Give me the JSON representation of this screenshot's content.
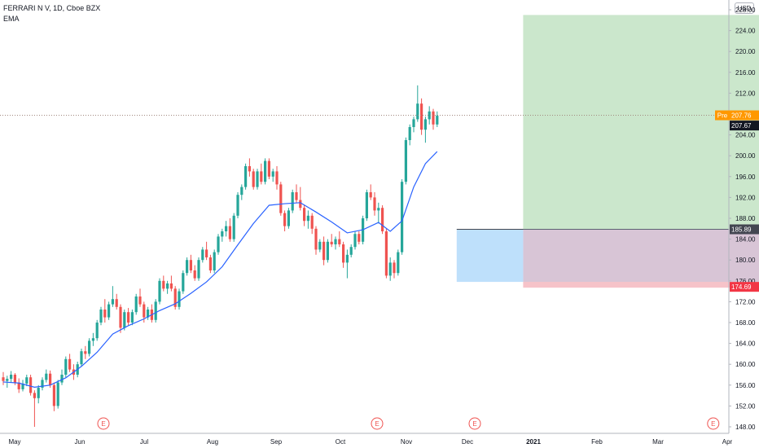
{
  "header": {
    "symbol_line": "FERRARI N V, 1D, Cboe BZX",
    "indicator": "EMA",
    "currency": "USD"
  },
  "colors": {
    "up": "#26a69a",
    "down": "#ef5350",
    "ema": "#2962ff",
    "profit_zone": "#c8e6c9",
    "loss_zone": "#f5c0c6",
    "entry_zone": "#bbdefb",
    "pre_label": "#ff9800",
    "current_label": "#131722",
    "entry_label": "#434651",
    "stop_label": "#f23645"
  },
  "chart_data": {
    "type": "candlestick",
    "y_range": [
      147,
      227
    ],
    "y_ticks": [
      "148.00",
      "152.00",
      "156.00",
      "160.00",
      "164.00",
      "168.00",
      "172.00",
      "176.00",
      "180.00",
      "184.00",
      "188.00",
      "192.00",
      "196.00",
      "200.00",
      "204.00",
      "208.00",
      "212.00",
      "216.00",
      "220.00",
      "224.00",
      "228.00"
    ],
    "x_ticks": [
      "May",
      "Jun",
      "Jul",
      "Aug",
      "Sep",
      "Oct",
      "Nov",
      "Dec",
      "2021",
      "Feb",
      "Mar",
      "Apr"
    ],
    "bars": [
      [
        0,
        157.5,
        158.5,
        156.0,
        156.8
      ],
      [
        1,
        156.8,
        157.8,
        155.5,
        157.2
      ],
      [
        2,
        157.2,
        158.7,
        156.5,
        158.0
      ],
      [
        3,
        158.0,
        158.3,
        156.0,
        156.5
      ],
      [
        4,
        156.5,
        157.3,
        154.5,
        155.2
      ],
      [
        5,
        155.2,
        157.0,
        154.8,
        156.3
      ],
      [
        6,
        156.3,
        158.0,
        155.8,
        157.5
      ],
      [
        7,
        157.5,
        158.0,
        154.0,
        154.5
      ],
      [
        8,
        154.5,
        155.0,
        148.0,
        153.5
      ],
      [
        9,
        153.5,
        156.0,
        152.5,
        155.5
      ],
      [
        10,
        155.5,
        157.5,
        155.0,
        157.0
      ],
      [
        11,
        157.0,
        159.0,
        156.5,
        158.2
      ],
      [
        12,
        158.2,
        158.8,
        155.5,
        156.0
      ],
      [
        13,
        156.0,
        156.5,
        151.0,
        152.0
      ],
      [
        14,
        152.0,
        157.0,
        151.5,
        156.5
      ],
      [
        15,
        156.5,
        159.0,
        156.0,
        158.0
      ],
      [
        16,
        158.0,
        161.5,
        157.5,
        161.0
      ],
      [
        17,
        161.0,
        162.0,
        158.5,
        159.0
      ],
      [
        18,
        159.0,
        160.0,
        157.0,
        158.0
      ],
      [
        19,
        158.0,
        160.5,
        157.5,
        160.0
      ],
      [
        20,
        160.0,
        163.0,
        159.5,
        162.5
      ],
      [
        21,
        162.5,
        163.5,
        161.0,
        162.0
      ],
      [
        22,
        162.0,
        165.0,
        161.5,
        164.5
      ],
      [
        23,
        164.5,
        166.0,
        163.5,
        165.0
      ],
      [
        24,
        165.0,
        168.5,
        164.5,
        168.0
      ],
      [
        25,
        168.0,
        171.0,
        167.5,
        170.5
      ],
      [
        26,
        170.5,
        172.5,
        168.0,
        169.0
      ],
      [
        27,
        169.0,
        172.0,
        168.5,
        171.5
      ],
      [
        28,
        171.5,
        175.0,
        171.0,
        172.5
      ],
      [
        29,
        172.5,
        173.5,
        170.5,
        171.0
      ],
      [
        30,
        171.0,
        171.5,
        166.0,
        167.0
      ],
      [
        31,
        167.0,
        170.5,
        166.5,
        170.0
      ],
      [
        32,
        170.0,
        170.8,
        167.5,
        168.0
      ],
      [
        33,
        168.0,
        170.5,
        167.5,
        170.0
      ],
      [
        34,
        170.0,
        173.5,
        169.5,
        173.0
      ],
      [
        35,
        173.0,
        174.5,
        171.0,
        171.5
      ],
      [
        36,
        171.5,
        172.0,
        168.0,
        169.0
      ],
      [
        37,
        169.0,
        171.0,
        168.5,
        170.5
      ],
      [
        38,
        170.5,
        171.5,
        168.0,
        168.5
      ],
      [
        39,
        168.5,
        172.5,
        168.0,
        172.0
      ],
      [
        40,
        172.0,
        176.5,
        171.5,
        176.0
      ],
      [
        41,
        176.0,
        177.0,
        174.0,
        174.5
      ],
      [
        42,
        174.5,
        176.0,
        173.5,
        175.5
      ],
      [
        43,
        175.5,
        177.0,
        174.0,
        174.5
      ],
      [
        44,
        174.5,
        175.0,
        170.5,
        171.0
      ],
      [
        45,
        171.0,
        174.5,
        170.5,
        174.0
      ],
      [
        46,
        174.0,
        178.0,
        173.5,
        177.5
      ],
      [
        47,
        177.5,
        180.5,
        177.0,
        180.0
      ],
      [
        48,
        180.0,
        181.0,
        177.5,
        178.0
      ],
      [
        49,
        178.0,
        179.0,
        176.0,
        176.5
      ],
      [
        50,
        176.5,
        180.5,
        176.0,
        180.0
      ],
      [
        51,
        180.0,
        182.5,
        179.5,
        182.0
      ],
      [
        52,
        182.0,
        183.5,
        180.0,
        180.5
      ],
      [
        53,
        180.5,
        181.0,
        177.5,
        178.0
      ],
      [
        54,
        178.0,
        182.0,
        177.5,
        181.5
      ],
      [
        55,
        181.5,
        185.0,
        181.0,
        184.5
      ],
      [
        56,
        184.5,
        186.0,
        183.5,
        185.5
      ],
      [
        57,
        185.5,
        187.5,
        184.5,
        186.5
      ],
      [
        58,
        186.5,
        188.0,
        183.5,
        184.0
      ],
      [
        59,
        184.0,
        189.0,
        183.5,
        188.5
      ],
      [
        60,
        188.5,
        193.0,
        188.0,
        192.5
      ],
      [
        61,
        192.5,
        194.5,
        191.5,
        194.0
      ],
      [
        62,
        194.0,
        198.5,
        193.5,
        198.0
      ],
      [
        63,
        198.0,
        199.5,
        196.0,
        197.0
      ],
      [
        64,
        197.0,
        197.5,
        193.5,
        194.0
      ],
      [
        65,
        194.0,
        197.5,
        193.5,
        197.0
      ],
      [
        66,
        197.0,
        198.5,
        194.5,
        195.0
      ],
      [
        67,
        195.0,
        199.5,
        194.5,
        199.0
      ],
      [
        68,
        199.0,
        199.5,
        195.5,
        196.0
      ],
      [
        69,
        196.0,
        197.5,
        195.0,
        197.0
      ],
      [
        70,
        197.0,
        198.0,
        193.5,
        194.5
      ],
      [
        71,
        194.5,
        195.0,
        188.5,
        189.0
      ],
      [
        72,
        189.0,
        189.5,
        185.5,
        186.5
      ],
      [
        73,
        186.5,
        190.0,
        186.0,
        189.5
      ],
      [
        74,
        189.5,
        193.5,
        189.0,
        193.0
      ],
      [
        75,
        193.0,
        194.5,
        191.0,
        191.5
      ],
      [
        76,
        191.5,
        194.0,
        189.5,
        190.0
      ],
      [
        77,
        190.0,
        190.5,
        186.5,
        187.5
      ],
      [
        78,
        187.5,
        189.5,
        186.0,
        188.5
      ],
      [
        79,
        188.5,
        189.0,
        185.0,
        186.0
      ],
      [
        80,
        186.0,
        186.5,
        181.0,
        182.0
      ],
      [
        81,
        182.0,
        184.0,
        181.5,
        183.5
      ],
      [
        82,
        183.5,
        184.5,
        179.0,
        180.0
      ],
      [
        83,
        180.0,
        184.0,
        179.5,
        183.5
      ],
      [
        84,
        183.5,
        185.0,
        182.5,
        183.0
      ],
      [
        85,
        183.0,
        184.5,
        182.0,
        184.0
      ],
      [
        86,
        184.0,
        185.5,
        182.5,
        183.0
      ],
      [
        87,
        183.0,
        183.5,
        178.5,
        179.5
      ],
      [
        88,
        179.5,
        182.0,
        176.5,
        181.0
      ],
      [
        89,
        181.0,
        183.0,
        180.5,
        182.5
      ],
      [
        90,
        182.5,
        185.5,
        182.0,
        185.0
      ],
      [
        91,
        185.0,
        185.5,
        183.0,
        183.5
      ],
      [
        92,
        183.5,
        188.5,
        183.0,
        188.0
      ],
      [
        93,
        188.0,
        193.5,
        187.5,
        193.0
      ],
      [
        94,
        193.0,
        194.5,
        191.5,
        192.0
      ],
      [
        95,
        192.0,
        193.0,
        188.5,
        189.5
      ],
      [
        96,
        189.5,
        191.0,
        187.0,
        190.0
      ],
      [
        97,
        190.0,
        190.5,
        185.0,
        185.5
      ],
      [
        98,
        185.5,
        186.0,
        176.5,
        177.0
      ],
      [
        99,
        177.0,
        180.5,
        176.0,
        179.5
      ],
      [
        100,
        179.5,
        180.0,
        176.5,
        177.5
      ],
      [
        101,
        177.5,
        182.0,
        177.0,
        181.5
      ],
      [
        102,
        181.5,
        195.5,
        181.0,
        195.0
      ],
      [
        103,
        195.0,
        203.5,
        194.5,
        203.0
      ],
      [
        104,
        203.0,
        206.0,
        202.0,
        205.5
      ],
      [
        105,
        205.5,
        207.5,
        204.5,
        207.0
      ],
      [
        106,
        207.0,
        213.5,
        206.5,
        210.0
      ],
      [
        107,
        210.0,
        211.0,
        204.0,
        205.0
      ],
      [
        108,
        205.0,
        207.5,
        202.5,
        207.0
      ],
      [
        109,
        207.0,
        209.5,
        206.0,
        208.5
      ],
      [
        110,
        208.5,
        209.0,
        205.0,
        206.0
      ],
      [
        111,
        206.0,
        208.5,
        205.5,
        207.67
      ]
    ],
    "ema": [
      [
        0,
        156.6
      ],
      [
        4,
        156.4
      ],
      [
        8,
        155.6
      ],
      [
        12,
        156.0
      ],
      [
        16,
        157.4
      ],
      [
        20,
        159.6
      ],
      [
        24,
        162.3
      ],
      [
        28,
        165.8
      ],
      [
        32,
        167.4
      ],
      [
        36,
        168.7
      ],
      [
        40,
        170.3
      ],
      [
        44,
        171.6
      ],
      [
        48,
        173.6
      ],
      [
        52,
        175.8
      ],
      [
        56,
        178.7
      ],
      [
        60,
        182.9
      ],
      [
        64,
        187.0
      ],
      [
        68,
        190.5
      ],
      [
        72,
        190.8
      ],
      [
        76,
        191.0
      ],
      [
        80,
        189.2
      ],
      [
        84,
        187.3
      ],
      [
        88,
        185.2
      ],
      [
        92,
        185.8
      ],
      [
        96,
        187.2
      ],
      [
        99,
        185.5
      ],
      [
        102,
        187.5
      ],
      [
        105,
        194.0
      ],
      [
        108,
        198.5
      ],
      [
        111,
        200.8
      ]
    ],
    "earnings_markers": [
      {
        "x": 25,
        "label": "E"
      },
      {
        "x": 95,
        "label": "E"
      },
      {
        "x": 120,
        "label": "E"
      },
      {
        "x": 181,
        "label": "E"
      }
    ],
    "price_lines": {
      "pre_market": {
        "tag": "Pre",
        "value": "207.76"
      },
      "last": {
        "value": "207.67"
      },
      "entry": {
        "value": "185.89"
      },
      "stop": {
        "value": "174.69"
      }
    },
    "position": {
      "entry_box": [
        116,
        133,
        175.8,
        185.89
      ],
      "profit_box": [
        133,
        218,
        185.89,
        227
      ],
      "loss_box": [
        133,
        218,
        174.69,
        185.89
      ]
    }
  }
}
